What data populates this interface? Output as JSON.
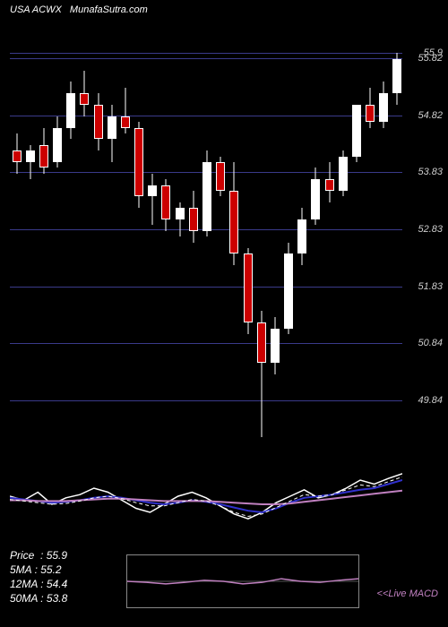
{
  "header": {
    "ticker": "USA ACWX",
    "source": "MunafaSutra.com"
  },
  "chart": {
    "type": "candlestick",
    "background_color": "#000000",
    "grid_color": "#3a3a8a",
    "text_color": "#cccccc",
    "ylim": [
      49.0,
      56.5
    ],
    "hlines": [
      {
        "value": 55.9,
        "label": "55.9"
      },
      {
        "value": 55.82,
        "label": "55.82"
      },
      {
        "value": 54.82,
        "label": "54.82"
      },
      {
        "value": 53.83,
        "label": "53.83"
      },
      {
        "value": 52.83,
        "label": "52.83"
      },
      {
        "value": 51.83,
        "label": "51.83"
      },
      {
        "value": 50.84,
        "label": "50.84"
      },
      {
        "value": 49.84,
        "label": "49.84"
      }
    ],
    "candles": [
      {
        "o": 54.2,
        "h": 54.5,
        "l": 53.8,
        "c": 54.0,
        "dir": "down"
      },
      {
        "o": 54.0,
        "h": 54.3,
        "l": 53.7,
        "c": 54.2,
        "dir": "up"
      },
      {
        "o": 54.3,
        "h": 54.6,
        "l": 53.8,
        "c": 53.9,
        "dir": "down"
      },
      {
        "o": 54.0,
        "h": 54.8,
        "l": 53.9,
        "c": 54.6,
        "dir": "up"
      },
      {
        "o": 54.6,
        "h": 55.4,
        "l": 54.4,
        "c": 55.2,
        "dir": "up"
      },
      {
        "o": 55.2,
        "h": 55.6,
        "l": 54.8,
        "c": 55.0,
        "dir": "down"
      },
      {
        "o": 55.0,
        "h": 55.2,
        "l": 54.2,
        "c": 54.4,
        "dir": "down"
      },
      {
        "o": 54.4,
        "h": 55.0,
        "l": 54.0,
        "c": 54.8,
        "dir": "up"
      },
      {
        "o": 54.8,
        "h": 55.3,
        "l": 54.5,
        "c": 54.6,
        "dir": "down"
      },
      {
        "o": 54.6,
        "h": 54.7,
        "l": 53.2,
        "c": 53.4,
        "dir": "down"
      },
      {
        "o": 53.4,
        "h": 53.8,
        "l": 52.9,
        "c": 53.6,
        "dir": "up"
      },
      {
        "o": 53.6,
        "h": 53.7,
        "l": 52.8,
        "c": 53.0,
        "dir": "down"
      },
      {
        "o": 53.0,
        "h": 53.3,
        "l": 52.7,
        "c": 53.2,
        "dir": "up"
      },
      {
        "o": 53.2,
        "h": 53.5,
        "l": 52.6,
        "c": 52.8,
        "dir": "down"
      },
      {
        "o": 52.8,
        "h": 54.2,
        "l": 52.7,
        "c": 54.0,
        "dir": "up"
      },
      {
        "o": 54.0,
        "h": 54.1,
        "l": 53.4,
        "c": 53.5,
        "dir": "down"
      },
      {
        "o": 53.5,
        "h": 54.0,
        "l": 52.2,
        "c": 52.4,
        "dir": "down"
      },
      {
        "o": 52.4,
        "h": 52.5,
        "l": 51.0,
        "c": 51.2,
        "dir": "down"
      },
      {
        "o": 51.2,
        "h": 51.4,
        "l": 49.2,
        "c": 50.5,
        "dir": "down"
      },
      {
        "o": 50.5,
        "h": 51.3,
        "l": 50.3,
        "c": 51.1,
        "dir": "up"
      },
      {
        "o": 51.1,
        "h": 52.6,
        "l": 51.0,
        "c": 52.4,
        "dir": "up"
      },
      {
        "o": 52.4,
        "h": 53.2,
        "l": 52.2,
        "c": 53.0,
        "dir": "up"
      },
      {
        "o": 53.0,
        "h": 53.9,
        "l": 52.9,
        "c": 53.7,
        "dir": "up"
      },
      {
        "o": 53.7,
        "h": 54.0,
        "l": 53.3,
        "c": 53.5,
        "dir": "down"
      },
      {
        "o": 53.5,
        "h": 54.2,
        "l": 53.4,
        "c": 54.1,
        "dir": "up"
      },
      {
        "o": 54.1,
        "h": 55.0,
        "l": 54.0,
        "c": 55.0,
        "dir": "up"
      },
      {
        "o": 55.0,
        "h": 55.3,
        "l": 54.6,
        "c": 54.7,
        "dir": "down"
      },
      {
        "o": 54.7,
        "h": 55.4,
        "l": 54.6,
        "c": 55.2,
        "dir": "up"
      },
      {
        "o": 55.2,
        "h": 55.9,
        "l": 55.0,
        "c": 55.8,
        "dir": "up"
      }
    ],
    "candle_width": 10,
    "up_color": "#ffffff",
    "down_color": "#cc0000",
    "wick_color": "#ffffff"
  },
  "indicator": {
    "label": "49.84",
    "lines": [
      {
        "color": "#ffffff",
        "width": 1.5,
        "dash": "none",
        "points": [
          50,
          45,
          55,
          40,
          48,
          52,
          60,
          55,
          45,
          35,
          30,
          40,
          50,
          55,
          48,
          38,
          28,
          22,
          30,
          42,
          50,
          58,
          48,
          52,
          60,
          70,
          65,
          72,
          78
        ]
      },
      {
        "color": "#3030cc",
        "width": 2,
        "dash": "none",
        "points": [
          48,
          46,
          44,
          42,
          43,
          45,
          48,
          50,
          48,
          45,
          42,
          40,
          42,
          45,
          43,
          40,
          36,
          32,
          30,
          35,
          42,
          48,
          50,
          52,
          55,
          58,
          60,
          65,
          70
        ]
      },
      {
        "color": "#c080c0",
        "width": 2,
        "dash": "none",
        "points": [
          45,
          45,
          44,
          44,
          44,
          45,
          46,
          47,
          47,
          46,
          45,
          44,
          44,
          44,
          44,
          43,
          42,
          41,
          40,
          40,
          41,
          43,
          45,
          47,
          49,
          51,
          53,
          55,
          57
        ]
      },
      {
        "color": "#ffffff",
        "width": 1,
        "dash": "4,3",
        "points": [
          46,
          44,
          42,
          40,
          41,
          44,
          48,
          50,
          47,
          42,
          38,
          38,
          42,
          46,
          44,
          38,
          30,
          25,
          28,
          36,
          44,
          52,
          50,
          52,
          58,
          64,
          62,
          68,
          74
        ]
      }
    ]
  },
  "inset": {
    "label": "<<Live MACD",
    "line_color": "#c080c0",
    "points": [
      50,
      48,
      45,
      48,
      52,
      50,
      45,
      48,
      55,
      50,
      48,
      52,
      55
    ]
  },
  "info": {
    "price_label": "Price",
    "price_value": "55.9",
    "ma5_label": "5MA",
    "ma5_value": "55.2",
    "ma12_label": "12MA",
    "ma12_value": "54.4",
    "ma50_label": "50MA",
    "ma50_value": "53.8"
  }
}
